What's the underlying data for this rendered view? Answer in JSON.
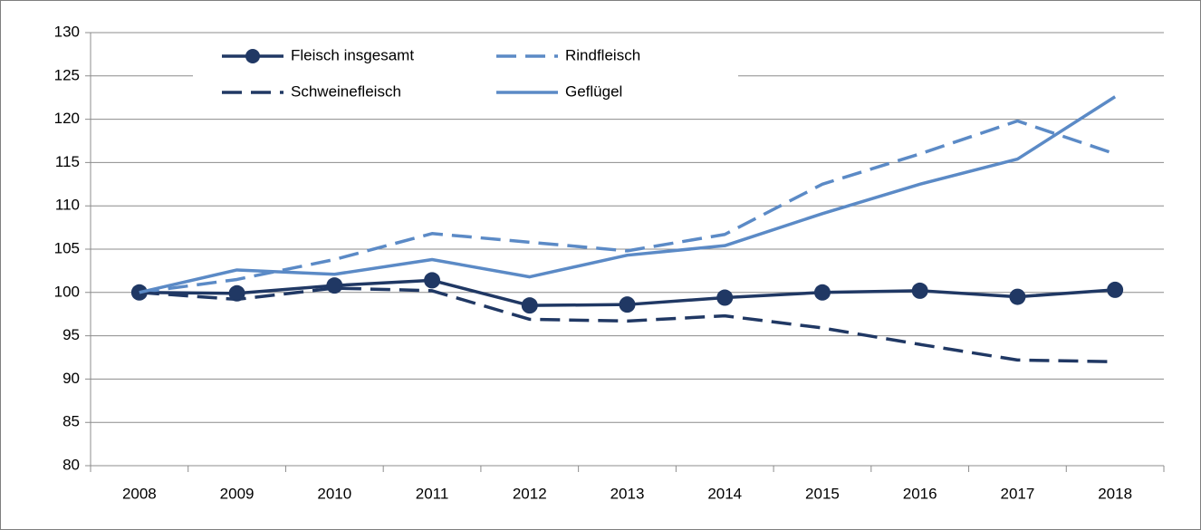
{
  "chart_data": {
    "type": "line",
    "categories": [
      "2008",
      "2009",
      "2010",
      "2011",
      "2012",
      "2013",
      "2014",
      "2015",
      "2016",
      "2017",
      "2018"
    ],
    "series": [
      {
        "name": "Fleisch insgesamt",
        "color": "#203864",
        "dashed": false,
        "markers": true,
        "values": [
          100,
          99.9,
          100.8,
          101.4,
          98.5,
          98.6,
          99.4,
          100.0,
          100.2,
          99.5,
          100.3
        ]
      },
      {
        "name": "Rindfleisch",
        "color": "#5b8ac6",
        "dashed": true,
        "markers": false,
        "values": [
          100,
          101.5,
          103.8,
          106.8,
          105.8,
          104.8,
          106.7,
          112.5,
          116.0,
          119.8,
          116.0
        ]
      },
      {
        "name": "Schweinefleisch",
        "color": "#203864",
        "dashed": true,
        "markers": false,
        "values": [
          100,
          99.2,
          100.5,
          100.2,
          96.9,
          96.7,
          97.3,
          95.9,
          94.0,
          92.2,
          92.0
        ]
      },
      {
        "name": "Geflügel",
        "color": "#5b8ac6",
        "dashed": false,
        "markers": false,
        "values": [
          100,
          102.6,
          102.1,
          103.8,
          101.8,
          104.3,
          105.4,
          109.1,
          112.5,
          115.4,
          122.6
        ]
      }
    ],
    "ylim": [
      80,
      130
    ],
    "yticks": [
      80,
      85,
      90,
      95,
      100,
      105,
      110,
      115,
      120,
      125,
      130
    ],
    "grid": true,
    "legend": "top-left"
  }
}
